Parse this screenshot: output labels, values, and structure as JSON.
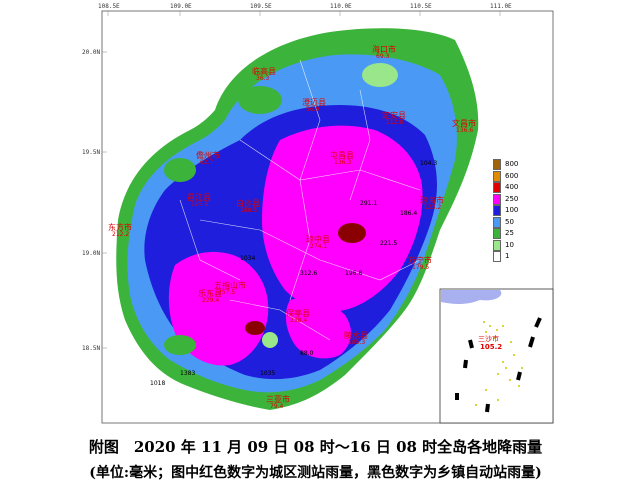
{
  "map": {
    "lon_ticks": [
      "108.5E",
      "109.0E",
      "109.5E",
      "110.0E",
      "110.5E",
      "111.0E"
    ],
    "lat_ticks": [
      "20.0N",
      "19.5N",
      "19.0N",
      "18.5N"
    ],
    "legend": [
      {
        "label": "800",
        "color": "#a0640a"
      },
      {
        "label": "600",
        "color": "#e08a00"
      },
      {
        "label": "400",
        "color": "#e00000"
      },
      {
        "label": "250",
        "color": "#ff00ff"
      },
      {
        "label": "100",
        "color": "#1e1edc"
      },
      {
        "label": "50",
        "color": "#4a9af5"
      },
      {
        "label": "25",
        "color": "#3cb43c"
      },
      {
        "label": "10",
        "color": "#9ae68a"
      },
      {
        "label": "1",
        "color": "#ffffff"
      }
    ],
    "cities": [
      {
        "name": "海口市",
        "value": "69.3"
      },
      {
        "name": "临高县",
        "value": "36.3"
      },
      {
        "name": "澄迈县",
        "value": "56.9"
      },
      {
        "name": "定安县",
        "value": "112.8"
      },
      {
        "name": "文昌市",
        "value": "136.6"
      },
      {
        "name": "儋州市",
        "value": "62.7"
      },
      {
        "name": "屯昌县",
        "value": "136.3"
      },
      {
        "name": "琼海市",
        "value": "123.2"
      },
      {
        "name": "白沙县",
        "value": "188.5"
      },
      {
        "name": "东方市",
        "value": "212.2"
      },
      {
        "name": "琼中县",
        "value": "274.1"
      },
      {
        "name": "万宁市",
        "value": "179.5"
      },
      {
        "name": "昌江县",
        "value": "195.6"
      },
      {
        "name": "五指山市",
        "value": "257.5"
      },
      {
        "name": "乐东县",
        "value": "229.4"
      },
      {
        "name": "保亭县",
        "value": "238.4"
      },
      {
        "name": "陵水县",
        "value": "185.3"
      },
      {
        "name": "三亚市",
        "value": "79.4"
      }
    ],
    "inset": {
      "name": "三沙市",
      "value": "105.2",
      "colors": {
        "land": "#a8b0f0",
        "dots": "#c8c800",
        "border": "#000000"
      }
    },
    "station_values": [
      "186.4",
      "221.5",
      "196.8",
      "312.6",
      "291.1",
      "104.3",
      "88.0",
      "1018",
      "1383",
      "1035",
      "1034"
    ]
  },
  "caption": {
    "line1": "附图　2020 年 11 月 09 日 08 时～16 日 08 时全岛各地降雨量",
    "line2": "(单位:毫米；图中红色数字为城区测站雨量，黑色数字为乡镇自动站雨量)"
  }
}
